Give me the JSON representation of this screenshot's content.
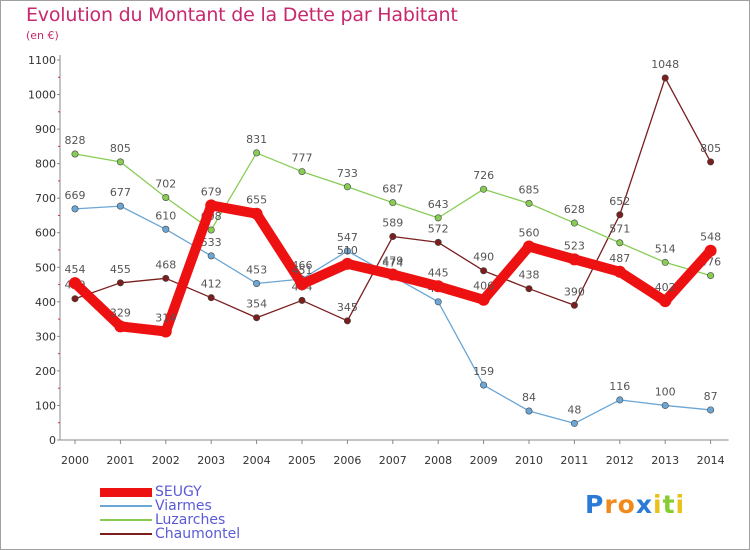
{
  "chart_data": {
    "type": "line",
    "title": "Evolution du Montant de la Dette par Habitant",
    "subtitle": "(en €)",
    "categories": [
      "2000",
      "2001",
      "2002",
      "2003",
      "2004",
      "2005",
      "2006",
      "2007",
      "2008",
      "2009",
      "2010",
      "2011",
      "2012",
      "2013",
      "2014"
    ],
    "ylim": [
      0,
      1100
    ],
    "yticks": [
      "0",
      "100",
      "200",
      "300",
      "400",
      "500",
      "600",
      "700",
      "800",
      "900",
      "1000",
      "1100"
    ],
    "grid": false,
    "legend_position": "bottom-left",
    "series": [
      {
        "name": "Chaumontel",
        "color": "#7a1e1e",
        "emphasis": false,
        "values": [
          409,
          455,
          468,
          412,
          354,
          404,
          345,
          589,
          572,
          490,
          438,
          390,
          652,
          1048,
          805
        ]
      },
      {
        "name": "Luzarches",
        "color": "#88cc55",
        "emphasis": false,
        "values": [
          828,
          805,
          702,
          608,
          831,
          777,
          733,
          687,
          643,
          726,
          685,
          628,
          571,
          514,
          476
        ]
      },
      {
        "name": "Viarmes",
        "color": "#6aa6d6",
        "emphasis": false,
        "values": [
          669,
          677,
          610,
          533,
          453,
          466,
          547,
          474,
          400,
          159,
          84,
          48,
          116,
          100,
          87
        ]
      },
      {
        "name": "SEUGY",
        "color": "#ee1111",
        "emphasis": true,
        "values": [
          454,
          329,
          314,
          679,
          655,
          451,
          510,
          479,
          445,
          406,
          560,
          523,
          487,
          402,
          548
        ]
      }
    ],
    "legend_order": [
      "SEUGY",
      "Viarmes",
      "Luzarches",
      "Chaumontel"
    ]
  },
  "logo": {
    "text": "Proxiti",
    "letters": [
      "P",
      "r",
      "o",
      "x",
      "i",
      "t",
      "i"
    ],
    "colors": [
      "#2a7ad6",
      "#f08a1a",
      "#f08a1a",
      "#2a7ad6",
      "#e8c21a",
      "#88cc33",
      "#e8c21a"
    ]
  }
}
